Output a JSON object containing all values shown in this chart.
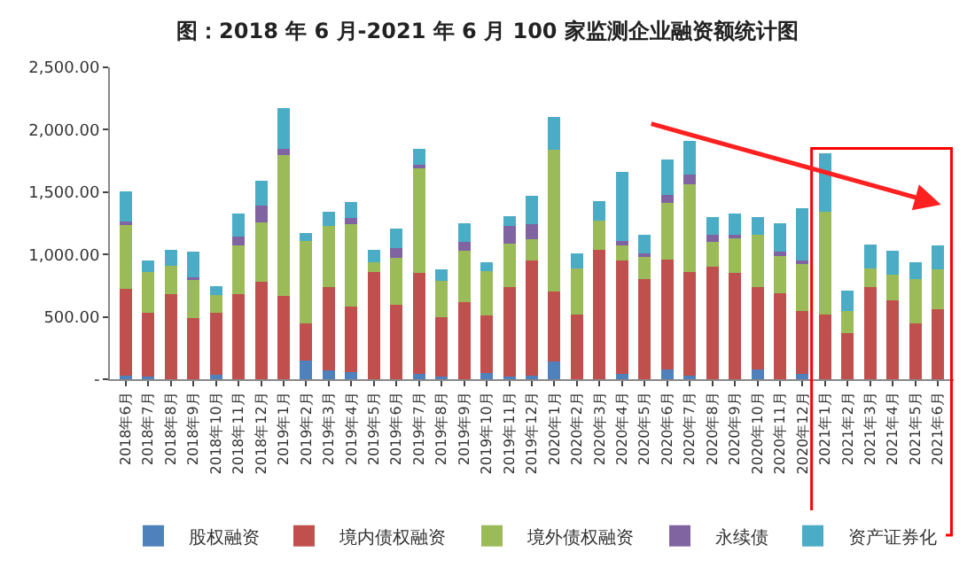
{
  "chart_data": {
    "type": "bar",
    "stacked": true,
    "title": "图：2018 年 6 月-2021 年 6 月 100 家监测企业融资额统计图",
    "categories": [
      "2018年6月",
      "2018年7月",
      "2018年8月",
      "2018年9月",
      "2018年10月",
      "2018年11月",
      "2018年12月",
      "2019年1月",
      "2019年2月",
      "2019年3月",
      "2019年4月",
      "2019年5月",
      "2019年6月",
      "2019年7月",
      "2019年8月",
      "2019年9月",
      "2019年10月",
      "2019年11月",
      "2019年12月",
      "2020年1月",
      "2020年2月",
      "2020年3月",
      "2020年4月",
      "2020年5月",
      "2020年6月",
      "2020年7月",
      "2020年8月",
      "2020年9月",
      "2020年10月",
      "2020年11月",
      "2020年12月",
      "2021年1月",
      "2021年2月",
      "2021年3月",
      "2021年4月",
      "2021年5月",
      "2021年6月"
    ],
    "series": [
      {
        "name": "股权融资",
        "color": "#4f81bd",
        "values": [
          25,
          20,
          0,
          0,
          35,
          0,
          0,
          0,
          150,
          70,
          60,
          0,
          0,
          40,
          20,
          0,
          50,
          20,
          30,
          140,
          0,
          0,
          40,
          0,
          80,
          30,
          null,
          0,
          80,
          null,
          40,
          0,
          0,
          0,
          0,
          0,
          0
        ]
      },
      {
        "name": "境内债权融资",
        "color": "#c0504d",
        "values": [
          700,
          510,
          680,
          490,
          500,
          680,
          780,
          670,
          300,
          670,
          520,
          860,
          600,
          810,
          480,
          620,
          460,
          720,
          920,
          560,
          520,
          1040,
          910,
          800,
          880,
          830,
          900,
          850,
          660,
          690,
          510,
          520,
          370,
          740,
          630,
          450,
          560
        ]
      },
      {
        "name": "境外债权融资",
        "color": "#9bbb59",
        "values": [
          510,
          330,
          230,
          310,
          140,
          390,
          480,
          1130,
          660,
          490,
          660,
          80,
          370,
          840,
          290,
          410,
          360,
          350,
          170,
          1140,
          370,
          230,
          120,
          180,
          450,
          700,
          200,
          280,
          420,
          300,
          380,
          820,
          180,
          150,
          210,
          350,
          320
        ]
      },
      {
        "name": "永续债",
        "color": "#8064a2",
        "values": [
          30,
          0,
          0,
          15,
          null,
          70,
          130,
          50,
          null,
          0,
          50,
          0,
          80,
          30,
          0,
          70,
          0,
          140,
          120,
          0,
          0,
          0,
          40,
          30,
          70,
          80,
          60,
          30,
          0,
          30,
          20,
          0,
          0,
          0,
          0,
          0,
          0
        ]
      },
      {
        "name": "资产证券化",
        "color": "#4bacc6",
        "values": [
          240,
          90,
          130,
          210,
          70,
          190,
          200,
          320,
          60,
          110,
          130,
          100,
          160,
          130,
          90,
          150,
          70,
          80,
          230,
          260,
          120,
          160,
          550,
          150,
          280,
          270,
          140,
          170,
          140,
          230,
          420,
          470,
          160,
          190,
          190,
          140,
          190
        ]
      }
    ],
    "ylim": [
      0,
      2500
    ],
    "yticks": [
      {
        "value": 0,
        "label": "-"
      },
      {
        "value": 500,
        "label": "500.00"
      },
      {
        "value": 1000,
        "label": "1,000.00"
      },
      {
        "value": 1500,
        "label": "1,500.00"
      },
      {
        "value": 2000,
        "label": "2,000.00"
      },
      {
        "value": 2500,
        "label": "2,500.00"
      }
    ],
    "legend": "bottom"
  }
}
